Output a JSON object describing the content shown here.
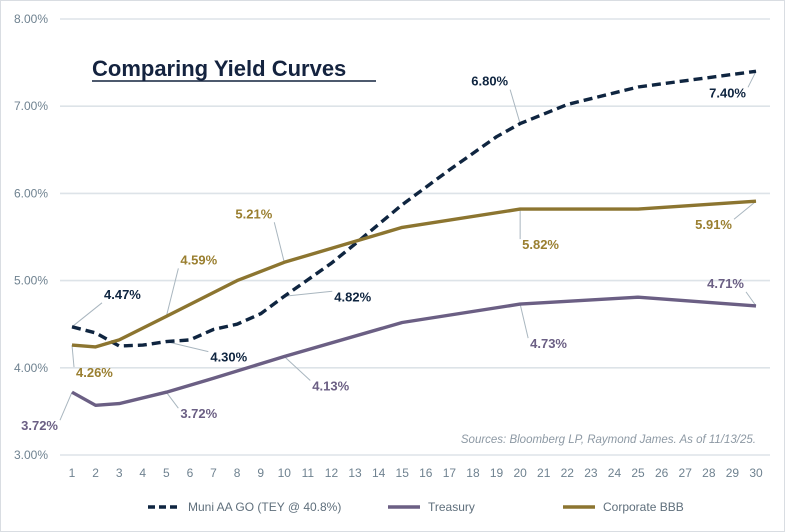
{
  "chart_data": {
    "type": "line",
    "title": "Comparing Yield Curves",
    "source_note": "Sources: Bloomberg LP, Raymond James. As of 11/13/25.",
    "xlabel": "",
    "ylabel": "",
    "x_ticks": [
      1,
      2,
      3,
      4,
      5,
      6,
      7,
      8,
      9,
      10,
      11,
      12,
      13,
      14,
      15,
      16,
      17,
      18,
      19,
      20,
      21,
      22,
      23,
      24,
      25,
      26,
      27,
      28,
      29,
      30
    ],
    "xlim": [
      1,
      30
    ],
    "ylim": [
      3.0,
      8.0
    ],
    "y_ticks": [
      "3.00%",
      "4.00%",
      "5.00%",
      "6.00%",
      "7.00%",
      "8.00%"
    ],
    "y_tick_values": [
      3,
      4,
      5,
      6,
      7,
      8
    ],
    "grid": "horizontal",
    "legend_position": "bottom",
    "series": [
      {
        "name": "Muni AA GO (TEY @ 40.8%)",
        "color": "#0f2540",
        "style": "dashed",
        "x": [
          1,
          2,
          3,
          4,
          5,
          6,
          7,
          8,
          9,
          10,
          12,
          13,
          15,
          17,
          19,
          20,
          22,
          25,
          30
        ],
        "values": [
          4.47,
          4.4,
          4.25,
          4.26,
          4.3,
          4.32,
          4.44,
          4.5,
          4.62,
          4.82,
          5.2,
          5.42,
          5.87,
          6.27,
          6.65,
          6.8,
          7.02,
          7.22,
          7.4
        ]
      },
      {
        "name": "Treasury",
        "color": "#6b5f84",
        "style": "solid",
        "x": [
          1,
          2,
          3,
          5,
          7,
          10,
          15,
          20,
          25,
          30
        ],
        "values": [
          3.72,
          3.57,
          3.59,
          3.72,
          3.88,
          4.13,
          4.52,
          4.73,
          4.81,
          4.71
        ]
      },
      {
        "name": "Corporate BBB",
        "color": "#8c7530",
        "style": "solid",
        "x": [
          1,
          2,
          3,
          5,
          8,
          10,
          13,
          15,
          20,
          25,
          30
        ],
        "values": [
          4.26,
          4.24,
          4.32,
          4.59,
          5.0,
          5.21,
          5.45,
          5.61,
          5.82,
          5.82,
          5.91
        ]
      }
    ],
    "annotations": [
      {
        "series": 0,
        "x": 1,
        "text": "4.47%"
      },
      {
        "series": 0,
        "x": 5,
        "text": "4.30%"
      },
      {
        "series": 0,
        "x": 10,
        "text": "4.82%"
      },
      {
        "series": 0,
        "x": 20,
        "text": "6.80%"
      },
      {
        "series": 0,
        "x": 30,
        "text": "7.40%"
      },
      {
        "series": 1,
        "x": 1,
        "text": "3.72%"
      },
      {
        "series": 1,
        "x": 5,
        "text": "3.72%"
      },
      {
        "series": 1,
        "x": 10,
        "text": "4.13%"
      },
      {
        "series": 1,
        "x": 20,
        "text": "4.73%"
      },
      {
        "series": 1,
        "x": 30,
        "text": "4.71%"
      },
      {
        "series": 2,
        "x": 1,
        "text": "4.26%"
      },
      {
        "series": 2,
        "x": 5,
        "text": "4.59%"
      },
      {
        "series": 2,
        "x": 10,
        "text": "5.21%"
      },
      {
        "series": 2,
        "x": 20,
        "text": "5.82%"
      },
      {
        "series": 2,
        "x": 30,
        "text": "5.91%"
      }
    ]
  }
}
